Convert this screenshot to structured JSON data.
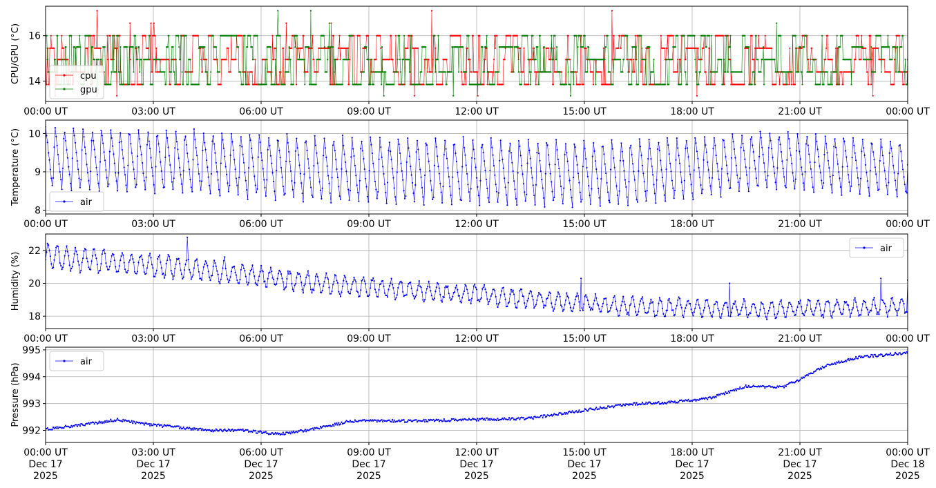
{
  "chart_data": [
    {
      "type": "line",
      "ylabel": "CPU/GPU (°C)",
      "ylim": [
        13.1,
        17.3
      ],
      "yticks": [
        14,
        16
      ],
      "x_range": [
        "2025-12-17T00:00",
        "2025-12-18T00:00"
      ],
      "x_tick_labels": [
        "00:00 UT",
        "03:00 UT",
        "06:00 UT",
        "09:00 UT",
        "12:00 UT",
        "15:00 UT",
        "18:00 UT",
        "21:00 UT",
        "00:00 UT"
      ],
      "grid": true,
      "legend": "lower-left",
      "series": [
        {
          "name": "cpu",
          "color": "#ff0000",
          "base_values": [
            13.85,
            14.95,
            15.45,
            16.0,
            14.4
          ],
          "spike_values": [
            16.55,
            17.1,
            13.35
          ],
          "sample_interval_minutes": 1.0
        },
        {
          "name": "gpu",
          "color": "#008000",
          "base_values": [
            13.85,
            14.4,
            14.95,
            15.5,
            16.0
          ],
          "spike_values": [
            16.55,
            17.1,
            13.35
          ],
          "sample_interval_minutes": 1.0
        }
      ]
    },
    {
      "type": "line",
      "ylabel": "Temperature (°C)",
      "ylim": [
        7.9,
        10.35
      ],
      "yticks": [
        8,
        9,
        10
      ],
      "x_range": [
        "2025-12-17T00:00",
        "2025-12-18T00:00"
      ],
      "x_tick_labels": [
        "00:00 UT",
        "03:00 UT",
        "06:00 UT",
        "09:00 UT",
        "12:00 UT",
        "15:00 UT",
        "18:00 UT",
        "21:00 UT",
        "00:00 UT"
      ],
      "grid": true,
      "legend": "lower-left",
      "series": [
        {
          "name": "air",
          "color": "#0000ff",
          "cycle_minutes": 15.5,
          "peak_values": [
            [
              0,
              10.2
            ],
            [
              4,
              10.1
            ],
            [
              8,
              9.95
            ],
            [
              12,
              9.9
            ],
            [
              16,
              9.85
            ],
            [
              18,
              9.95
            ],
            [
              20,
              10.1
            ],
            [
              24,
              9.85
            ]
          ],
          "trough_values": [
            [
              0,
              8.5
            ],
            [
              4,
              8.4
            ],
            [
              8,
              8.15
            ],
            [
              12,
              8.1
            ],
            [
              16,
              8.05
            ],
            [
              18,
              8.25
            ],
            [
              20,
              8.5
            ],
            [
              24,
              8.3
            ]
          ],
          "sample_interval_minutes": 1.6
        }
      ]
    },
    {
      "type": "line",
      "ylabel": "Humidity (%)",
      "ylim": [
        17.25,
        23.0
      ],
      "yticks": [
        18,
        20,
        22
      ],
      "x_range": [
        "2025-12-17T00:00",
        "2025-12-18T00:00"
      ],
      "x_tick_labels": [
        "00:00 UT",
        "03:00 UT",
        "06:00 UT",
        "09:00 UT",
        "12:00 UT",
        "15:00 UT",
        "18:00 UT",
        "21:00 UT",
        "00:00 UT"
      ],
      "grid": true,
      "legend": "upper-right",
      "series": [
        {
          "name": "air",
          "color": "#0000ff",
          "cycle_minutes": 15.5,
          "mean_values": [
            [
              0,
              21.6
            ],
            [
              4,
              20.9
            ],
            [
              8,
              19.9
            ],
            [
              12,
              19.3
            ],
            [
              16,
              18.6
            ],
            [
              20,
              18.4
            ],
            [
              24,
              18.6
            ]
          ],
          "amplitude_values": [
            [
              0,
              0.7
            ],
            [
              6,
              0.55
            ],
            [
              12,
              0.5
            ],
            [
              24,
              0.45
            ]
          ],
          "spike_values": [
            [
              3.95,
              22.8
            ],
            [
              5.0,
              21.6
            ],
            [
              14.9,
              20.3
            ],
            [
              19.05,
              20.0
            ],
            [
              23.25,
              20.3
            ],
            [
              24.0,
              20.2
            ]
          ],
          "sample_interval_minutes": 1.6
        }
      ]
    },
    {
      "type": "line",
      "ylabel": "Pressure (hPa)",
      "ylim": [
        991.55,
        995.1
      ],
      "yticks": [
        992,
        993,
        994,
        995
      ],
      "x_range": [
        "2025-12-17T00:00",
        "2025-12-18T00:00"
      ],
      "x_tick_labels": [
        "00:00 UT\nDec 17\n2025",
        "03:00 UT\nDec 17\n2025",
        "06:00 UT\nDec 17\n2025",
        "09:00 UT\nDec 17\n2025",
        "12:00 UT\nDec 17\n2025",
        "15:00 UT\nDec 17\n2025",
        "18:00 UT\nDec 17\n2025",
        "21:00 UT\nDec 17\n2025",
        "00:00 UT\nDec 18\n2025"
      ],
      "grid": true,
      "legend": "upper-left",
      "series": [
        {
          "name": "air",
          "color": "#0000ff",
          "trend_values": [
            [
              0,
              992.05
            ],
            [
              1,
              992.2
            ],
            [
              2,
              992.4
            ],
            [
              3,
              992.2
            ],
            [
              4.5,
              992.0
            ],
            [
              5.5,
              992.0
            ],
            [
              6.5,
              991.85
            ],
            [
              7.5,
              992.05
            ],
            [
              8.5,
              992.35
            ],
            [
              10,
              992.35
            ],
            [
              12,
              992.4
            ],
            [
              13.5,
              992.45
            ],
            [
              14.5,
              992.65
            ],
            [
              15.5,
              992.85
            ],
            [
              16.5,
              993.0
            ],
            [
              17.5,
              993.05
            ],
            [
              18.5,
              993.2
            ],
            [
              19.5,
              993.65
            ],
            [
              20.5,
              993.6
            ],
            [
              21,
              993.9
            ],
            [
              21.7,
              994.4
            ],
            [
              22.7,
              994.75
            ],
            [
              23.3,
              994.8
            ],
            [
              24,
              994.9
            ]
          ],
          "sample_interval_minutes": 1.6
        }
      ]
    }
  ]
}
